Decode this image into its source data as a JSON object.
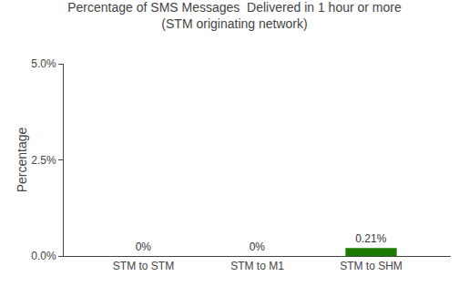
{
  "chart_data": {
    "type": "bar",
    "title": "Percentage of SMS Messages  Delivered in 1 hour or more",
    "subtitle": "(STM originating network)",
    "categories": [
      "STM to STM",
      "STM to M1",
      "STM to SHM"
    ],
    "values": [
      0.0,
      0.0,
      0.21
    ],
    "value_labels": [
      "0%",
      "0%",
      "0.21%"
    ],
    "data_labels": true,
    "color": "#1a7a00",
    "ylabel": "Percentage",
    "ylim": [
      0,
      5.0
    ],
    "yticks": [
      {
        "value": 0.0,
        "label": "0.0%"
      },
      {
        "value": 2.5,
        "label": "2.5%"
      },
      {
        "value": 5.0,
        "label": "5.0%"
      }
    ],
    "grid": false
  }
}
